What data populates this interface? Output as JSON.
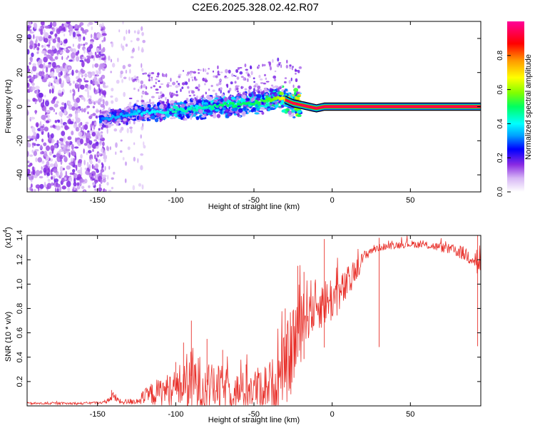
{
  "title": "C2E6.2025.328.02.42.R07",
  "chart_data": [
    {
      "type": "heatmap",
      "name": "spectrogram",
      "xlabel": "Height of straight line (km)",
      "ylabel": "Frequency (Hz)",
      "xlim": [
        -195,
        95
      ],
      "ylim": [
        -50,
        50
      ],
      "xticks": [
        -150,
        -100,
        -50,
        0,
        50
      ],
      "yticks": [
        -40,
        -20,
        0,
        20,
        40
      ],
      "colorbar": {
        "label": "Normalized spectral amplitude",
        "range": [
          0,
          1
        ],
        "ticks": [
          "0.0",
          "0.2",
          "0.4",
          "0.6",
          "0.8"
        ],
        "tick_values": [
          0.0,
          0.2,
          0.4,
          0.6,
          0.8
        ]
      },
      "ridge": {
        "x": [
          -148,
          -140,
          -130,
          -120,
          -110,
          -100,
          -90,
          -80,
          -70,
          -60,
          -50,
          -40,
          -35,
          -30,
          -25,
          -20,
          -15,
          -10,
          -5,
          0,
          5,
          10,
          20,
          40,
          60,
          80,
          95
        ],
        "frequency": [
          -8,
          -6,
          -5,
          -3,
          -3,
          -2,
          -2,
          0,
          1,
          1,
          2,
          4,
          5,
          4,
          2,
          1,
          0,
          -1,
          0,
          0,
          0,
          0,
          0,
          0,
          0,
          0,
          0
        ],
        "amplitude": [
          0.3,
          0.35,
          0.35,
          0.4,
          0.4,
          0.45,
          0.45,
          0.45,
          0.5,
          0.5,
          0.5,
          0.55,
          0.6,
          0.7,
          0.8,
          0.85,
          0.88,
          0.9,
          0.92,
          0.93,
          0.93,
          0.94,
          0.95,
          0.95,
          0.95,
          0.95,
          0.95
        ]
      }
    },
    {
      "type": "line",
      "name": "snr",
      "xlabel": "Height of straight line (km)",
      "ylabel": "SNR (10 * v/v)",
      "multiplier_label": "(x10",
      "multiplier_exp": "4",
      "color": "#e8302a",
      "xlim": [
        -195,
        95
      ],
      "ylim": [
        0,
        1.4
      ],
      "xticks": [
        -150,
        -100,
        -50,
        0,
        50
      ],
      "yticks": [
        0.2,
        0.4,
        0.6,
        0.8,
        1.0,
        1.2,
        1.4
      ],
      "ytick_labels": [
        "0.2",
        "0.4",
        "0.6",
        "0.8",
        "1.0",
        "1.2",
        "1.4"
      ],
      "envelope": {
        "x": [
          -195,
          -160,
          -145,
          -140,
          -135,
          -125,
          -115,
          -100,
          -90,
          -80,
          -70,
          -60,
          -50,
          -40,
          -35,
          -30,
          -25,
          -20,
          -15,
          -10,
          -5,
          0,
          5,
          10,
          15,
          20,
          25,
          30,
          40,
          50,
          60,
          70,
          80,
          90,
          95
        ],
        "mean": [
          0.02,
          0.02,
          0.03,
          0.08,
          0.03,
          0.04,
          0.1,
          0.15,
          0.2,
          0.15,
          0.15,
          0.12,
          0.14,
          0.17,
          0.2,
          0.3,
          0.5,
          0.7,
          0.8,
          0.82,
          0.85,
          0.88,
          0.92,
          1.0,
          1.1,
          1.22,
          1.28,
          1.3,
          1.32,
          1.33,
          1.32,
          1.3,
          1.27,
          1.22,
          1.15
        ],
        "spread": [
          0.01,
          0.01,
          0.01,
          0.04,
          0.02,
          0.03,
          0.1,
          0.15,
          0.3,
          0.2,
          0.18,
          0.15,
          0.17,
          0.2,
          0.25,
          0.3,
          0.4,
          0.35,
          0.25,
          0.22,
          0.2,
          0.2,
          0.15,
          0.15,
          0.1,
          0.05,
          0.04,
          0.03,
          0.03,
          0.03,
          0.03,
          0.04,
          0.05,
          0.08,
          0.22
        ]
      },
      "peaks": [
        {
          "x": -141,
          "y": 0.13
        },
        {
          "x": -100,
          "y": 0.36
        },
        {
          "x": -95,
          "y": 0.52
        },
        {
          "x": -90,
          "y": 0.7
        },
        {
          "x": -80,
          "y": 0.55
        },
        {
          "x": -70,
          "y": 0.46
        },
        {
          "x": -55,
          "y": 0.34
        },
        {
          "x": -30,
          "y": 0.8
        },
        {
          "x": -22,
          "y": 1.15
        },
        {
          "x": -18,
          "y": 1.1
        },
        {
          "x": -5,
          "y": 1.37
        },
        {
          "x": 30,
          "y": 1.38
        },
        {
          "x": 93,
          "y": 1.4
        }
      ]
    }
  ]
}
